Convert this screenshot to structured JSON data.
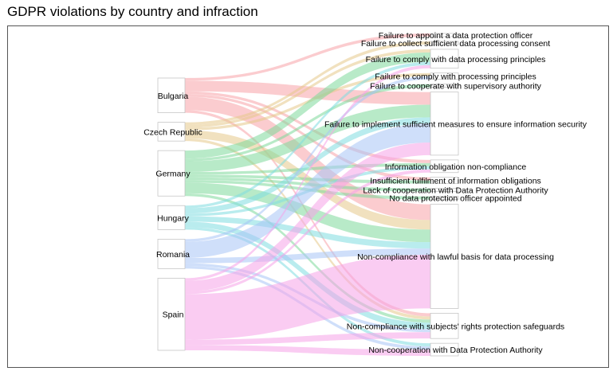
{
  "chart_data": {
    "type": "sankey",
    "title": "GDPR violations by country and infraction",
    "sources": [
      {
        "name": "Bulgaria",
        "color": "#f8a3a8"
      },
      {
        "name": "Czech Republic",
        "color": "#e6c88a"
      },
      {
        "name": "Germany",
        "color": "#7ed89a"
      },
      {
        "name": "Hungary",
        "color": "#7fdde0"
      },
      {
        "name": "Romania",
        "color": "#a7c4f5"
      },
      {
        "name": "Spain",
        "color": "#f5a3e8"
      }
    ],
    "targets": [
      "Failure to appoint a data protection officer",
      "Failure to collect sufficient data processing consent",
      "Failure to comply with data processing principles",
      "Failure to comply with processing principles",
      "Failure to cooperate with supervisory authority",
      "Failure to implement sufficient measures to ensure information security",
      "Information obligation non-compliance",
      "Insufficient fulfilment of information obligations",
      "Lack of cooperation with Data Protection Authority",
      "No data protection officer appointed",
      "Non-compliance with lawful basis for data processing",
      "Non-compliance with subjects' rights protection safeguards",
      "Non-cooperation with Data Protection Authority"
    ],
    "links": [
      {
        "source": "Bulgaria",
        "target": "Failure to appoint a data protection officer",
        "value": 1
      },
      {
        "source": "Bulgaria",
        "target": "Failure to implement sufficient measures to ensure information security",
        "value": 4
      },
      {
        "source": "Bulgaria",
        "target": "Information obligation non-compliance",
        "value": 1
      },
      {
        "source": "Bulgaria",
        "target": "Insufficient fulfilment of information obligations",
        "value": 1
      },
      {
        "source": "Bulgaria",
        "target": "Non-compliance with lawful basis for data processing",
        "value": 5
      },
      {
        "source": "Bulgaria",
        "target": "Non-compliance with subjects' rights protection safeguards",
        "value": 1
      },
      {
        "source": "Czech Republic",
        "target": "Failure to collect sufficient data processing consent",
        "value": 1
      },
      {
        "source": "Czech Republic",
        "target": "Failure to comply with data processing principles",
        "value": 1
      },
      {
        "source": "Czech Republic",
        "target": "Failure to comply with processing principles",
        "value": 1
      },
      {
        "source": "Czech Republic",
        "target": "Non-compliance with lawful basis for data processing",
        "value": 3
      },
      {
        "source": "Czech Republic",
        "target": "Non-compliance with subjects' rights protection safeguards",
        "value": 1
      },
      {
        "source": "Germany",
        "target": "Failure to comply with data processing principles",
        "value": 3
      },
      {
        "source": "Germany",
        "target": "Failure to cooperate with supervisory authority",
        "value": 1
      },
      {
        "source": "Germany",
        "target": "Failure to implement sufficient measures to ensure information security",
        "value": 4
      },
      {
        "source": "Germany",
        "target": "Information obligation non-compliance",
        "value": 1
      },
      {
        "source": "Germany",
        "target": "Insufficient fulfilment of information obligations",
        "value": 1
      },
      {
        "source": "Germany",
        "target": "Lack of cooperation with Data Protection Authority",
        "value": 1
      },
      {
        "source": "Germany",
        "target": "No data protection officer appointed",
        "value": 1
      },
      {
        "source": "Germany",
        "target": "Non-compliance with lawful basis for data processing",
        "value": 4
      },
      {
        "source": "Germany",
        "target": "Non-compliance with subjects' rights protection safeguards",
        "value": 1
      },
      {
        "source": "Hungary",
        "target": "Failure to comply with data processing principles",
        "value": 1
      },
      {
        "source": "Hungary",
        "target": "Failure to implement sufficient measures to ensure information security",
        "value": 2
      },
      {
        "source": "Hungary",
        "target": "Information obligation non-compliance",
        "value": 1
      },
      {
        "source": "Hungary",
        "target": "Non-compliance with lawful basis for data processing",
        "value": 2
      },
      {
        "source": "Hungary",
        "target": "Non-compliance with subjects' rights protection safeguards",
        "value": 2
      },
      {
        "source": "Hungary",
        "target": "Non-cooperation with Data Protection Authority",
        "value": 1
      },
      {
        "source": "Romania",
        "target": "Failure to comply with processing principles",
        "value": 1
      },
      {
        "source": "Romania",
        "target": "Failure to implement sufficient measures to ensure information security",
        "value": 6
      },
      {
        "source": "Romania",
        "target": "Non-compliance with lawful basis for data processing",
        "value": 2
      },
      {
        "source": "Romania",
        "target": "Non-compliance with subjects' rights protection safeguards",
        "value": 1
      },
      {
        "source": "Romania",
        "target": "Non-cooperation with Data Protection Authority",
        "value": 1
      },
      {
        "source": "Spain",
        "target": "Failure to comply with data processing principles",
        "value": 1
      },
      {
        "source": "Spain",
        "target": "Failure to implement sufficient measures to ensure information security",
        "value": 4
      },
      {
        "source": "Spain",
        "target": "Information obligation non-compliance",
        "value": 1
      },
      {
        "source": "Spain",
        "target": "Non-compliance with lawful basis for data processing",
        "value": 17
      },
      {
        "source": "Spain",
        "target": "Non-compliance with subjects' rights protection safeguards",
        "value": 2
      },
      {
        "source": "Spain",
        "target": "Non-cooperation with Data Protection Authority",
        "value": 2
      }
    ]
  }
}
